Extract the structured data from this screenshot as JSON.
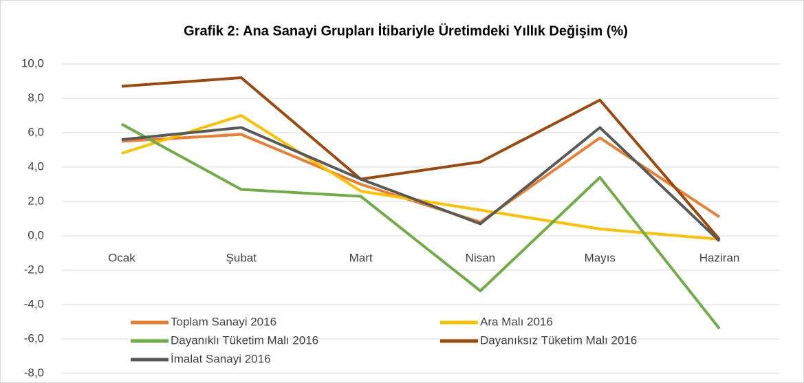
{
  "chart_data": {
    "type": "line",
    "title": "Grafik 2: Ana Sanayi Grupları İtibariyle  Üretimdeki Yıllık Değişim (%)",
    "categories": [
      "Ocak",
      "Şubat",
      "Mart",
      "Nisan",
      "Mayıs",
      "Haziran"
    ],
    "series": [
      {
        "name": "Toplam Sanayi 2016",
        "color": "#ed7d31",
        "values": [
          5.5,
          5.9,
          3.0,
          0.8,
          5.7,
          1.1
        ]
      },
      {
        "name": "Ara Malı 2016",
        "color": "#ffc000",
        "values": [
          4.8,
          7.0,
          2.6,
          1.5,
          0.4,
          -0.2
        ]
      },
      {
        "name": "Dayanıklı Tüketim Malı 2016",
        "color": "#70ad47",
        "values": [
          6.5,
          2.7,
          2.3,
          -3.2,
          3.4,
          -5.4
        ]
      },
      {
        "name": "Dayanıksız Tüketim Malı 2016",
        "color": "#9e480e",
        "values": [
          8.7,
          9.2,
          3.3,
          4.3,
          7.9,
          -0.2
        ]
      },
      {
        "name": "İmalat Sanayi 2016",
        "color": "#595959",
        "values": [
          5.6,
          6.3,
          3.3,
          0.7,
          6.3,
          -0.3
        ]
      }
    ],
    "ylim": [
      -8,
      10
    ],
    "yticks": [
      {
        "value": -8,
        "label": "-8,0"
      },
      {
        "value": -6,
        "label": "-6,0"
      },
      {
        "value": -4,
        "label": "-4,0"
      },
      {
        "value": -2,
        "label": "-2,0"
      },
      {
        "value": 0,
        "label": "0,0"
      },
      {
        "value": 2,
        "label": "2,0"
      },
      {
        "value": 4,
        "label": "4,0"
      },
      {
        "value": 6,
        "label": "6,0"
      },
      {
        "value": 8,
        "label": "8,0"
      },
      {
        "value": 10,
        "label": "10,0"
      }
    ],
    "grid": true,
    "legend": "bottom-left"
  }
}
